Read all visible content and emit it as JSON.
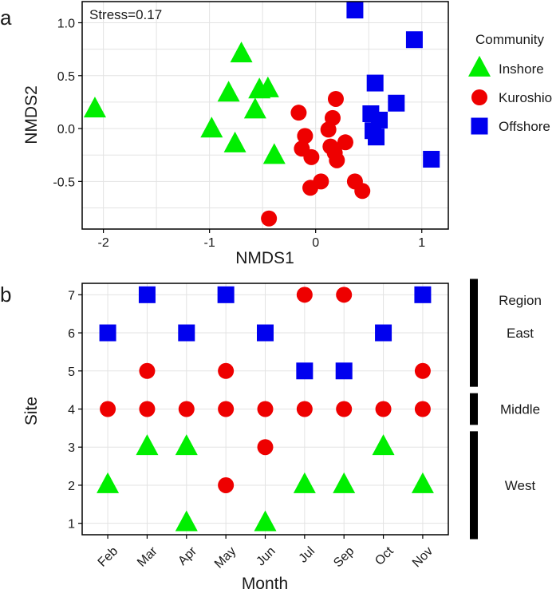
{
  "colors": {
    "Inshore": "#00ee00",
    "Kuroshio": "#ee0000",
    "Offshore": "#0000ee",
    "grid": "#e3e3e3",
    "frame": "#000000",
    "text": "#1a1a1a"
  },
  "chart_data": [
    {
      "type": "scatter",
      "panel_label": "a",
      "annotation": "Stress=0.17",
      "xlabel": "NMDS1",
      "ylabel": "NMDS2",
      "xlim": [
        -2.2,
        1.25
      ],
      "ylim": [
        -0.95,
        1.2
      ],
      "xticks": [
        -2,
        -1,
        0,
        1
      ],
      "xtick_labels": [
        "-2",
        "-1",
        "0",
        "1"
      ],
      "yticks": [
        -0.5,
        0.0,
        0.5,
        1.0
      ],
      "ytick_labels": [
        "-0.5",
        "0.0",
        "0.5",
        "1.0"
      ],
      "grid": true,
      "legend": {
        "title": "Community",
        "position": "right",
        "entries": [
          "Inshore",
          "Kuroshio",
          "Offshore"
        ]
      },
      "series": [
        {
          "name": "Inshore",
          "marker": "triangle",
          "points": [
            [
              -2.08,
              0.18
            ],
            [
              -0.7,
              0.7
            ],
            [
              -0.82,
              0.33
            ],
            [
              -0.53,
              0.36
            ],
            [
              -0.45,
              0.37
            ],
            [
              -0.98,
              -0.01
            ],
            [
              -0.57,
              0.17
            ],
            [
              -0.76,
              -0.15
            ],
            [
              -0.39,
              -0.26
            ]
          ]
        },
        {
          "name": "Kuroshio",
          "marker": "circle",
          "points": [
            [
              -0.16,
              0.15
            ],
            [
              0.19,
              0.28
            ],
            [
              -0.1,
              -0.07
            ],
            [
              0.12,
              -0.01
            ],
            [
              0.16,
              0.1
            ],
            [
              -0.13,
              -0.19
            ],
            [
              -0.04,
              -0.27
            ],
            [
              0.14,
              -0.17
            ],
            [
              0.28,
              -0.13
            ],
            [
              0.18,
              -0.23
            ],
            [
              0.2,
              -0.3
            ],
            [
              0.05,
              -0.5
            ],
            [
              -0.05,
              -0.56
            ],
            [
              0.37,
              -0.5
            ],
            [
              0.44,
              -0.59
            ],
            [
              -0.44,
              -0.85
            ]
          ]
        },
        {
          "name": "Offshore",
          "marker": "square",
          "points": [
            [
              0.37,
              1.12
            ],
            [
              0.93,
              0.84
            ],
            [
              0.56,
              0.43
            ],
            [
              0.76,
              0.24
            ],
            [
              0.52,
              0.14
            ],
            [
              0.6,
              0.08
            ],
            [
              0.54,
              -0.02
            ],
            [
              0.57,
              -0.08
            ],
            [
              1.09,
              -0.29
            ]
          ]
        }
      ]
    },
    {
      "type": "scatter",
      "panel_label": "b",
      "xlabel": "Month",
      "ylabel": "Site",
      "categories": [
        "Feb",
        "Mar",
        "Apr",
        "May",
        "Jun",
        "Jul",
        "Sep",
        "Oct",
        "Nov"
      ],
      "yticks": [
        1,
        2,
        3,
        4,
        5,
        6,
        7
      ],
      "ylim": [
        0.7,
        7.3
      ],
      "grid": true,
      "region_bar": {
        "title": "Region",
        "regions": [
          {
            "name": "East",
            "sites": [
              5,
              7
            ]
          },
          {
            "name": "Middle",
            "sites": [
              4,
              4
            ]
          },
          {
            "name": "West",
            "sites": [
              1,
              3
            ]
          }
        ]
      },
      "series": [
        {
          "name": "Inshore",
          "marker": "triangle",
          "points": [
            [
              "Feb",
              2
            ],
            [
              "Mar",
              3
            ],
            [
              "Apr",
              3
            ],
            [
              "Apr",
              1
            ],
            [
              "Jun",
              1
            ],
            [
              "Jul",
              2
            ],
            [
              "Sep",
              2
            ],
            [
              "Oct",
              3
            ],
            [
              "Nov",
              2
            ]
          ]
        },
        {
          "name": "Kuroshio",
          "marker": "circle",
          "points": [
            [
              "Feb",
              4
            ],
            [
              "Mar",
              5
            ],
            [
              "Mar",
              4
            ],
            [
              "Apr",
              4
            ],
            [
              "May",
              5
            ],
            [
              "May",
              4
            ],
            [
              "May",
              2
            ],
            [
              "Jun",
              4
            ],
            [
              "Jun",
              3
            ],
            [
              "Jul",
              7
            ],
            [
              "Jul",
              4
            ],
            [
              "Sep",
              7
            ],
            [
              "Sep",
              4
            ],
            [
              "Oct",
              4
            ],
            [
              "Nov",
              5
            ],
            [
              "Nov",
              4
            ]
          ]
        },
        {
          "name": "Offshore",
          "marker": "square",
          "points": [
            [
              "Feb",
              6
            ],
            [
              "Mar",
              7
            ],
            [
              "Apr",
              6
            ],
            [
              "May",
              7
            ],
            [
              "Jun",
              6
            ],
            [
              "Jul",
              5
            ],
            [
              "Sep",
              5
            ],
            [
              "Oct",
              6
            ],
            [
              "Nov",
              7
            ]
          ]
        }
      ]
    }
  ]
}
